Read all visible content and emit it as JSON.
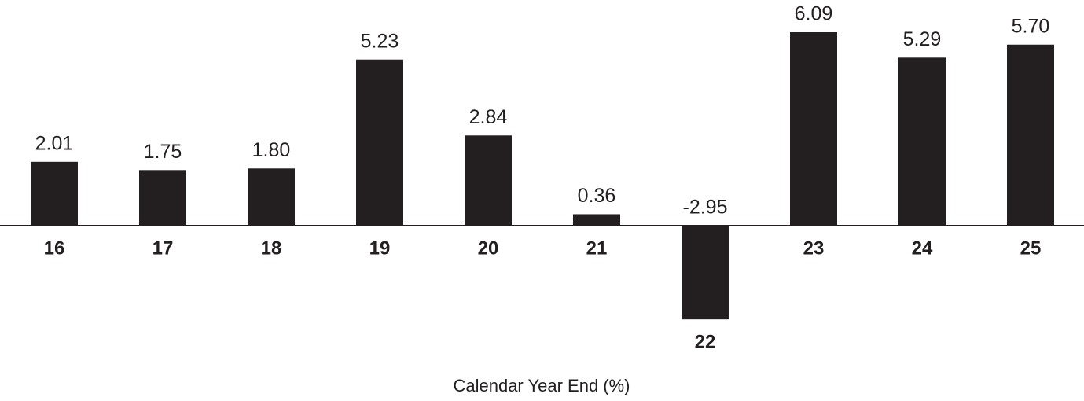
{
  "chart_data": {
    "type": "bar",
    "x_label": "Calendar Year End (%)",
    "categories": [
      "16",
      "17",
      "18",
      "19",
      "20",
      "21",
      "22",
      "23",
      "24",
      "25"
    ],
    "values": [
      2.01,
      1.75,
      1.8,
      5.23,
      2.84,
      0.36,
      -2.95,
      6.09,
      5.29,
      5.7
    ],
    "value_labels": [
      "2.01",
      "1.75",
      "1.80",
      "5.23",
      "2.84",
      "0.36",
      "-2.95",
      "6.09",
      "5.29",
      "5.70"
    ],
    "color": "#231f20"
  }
}
